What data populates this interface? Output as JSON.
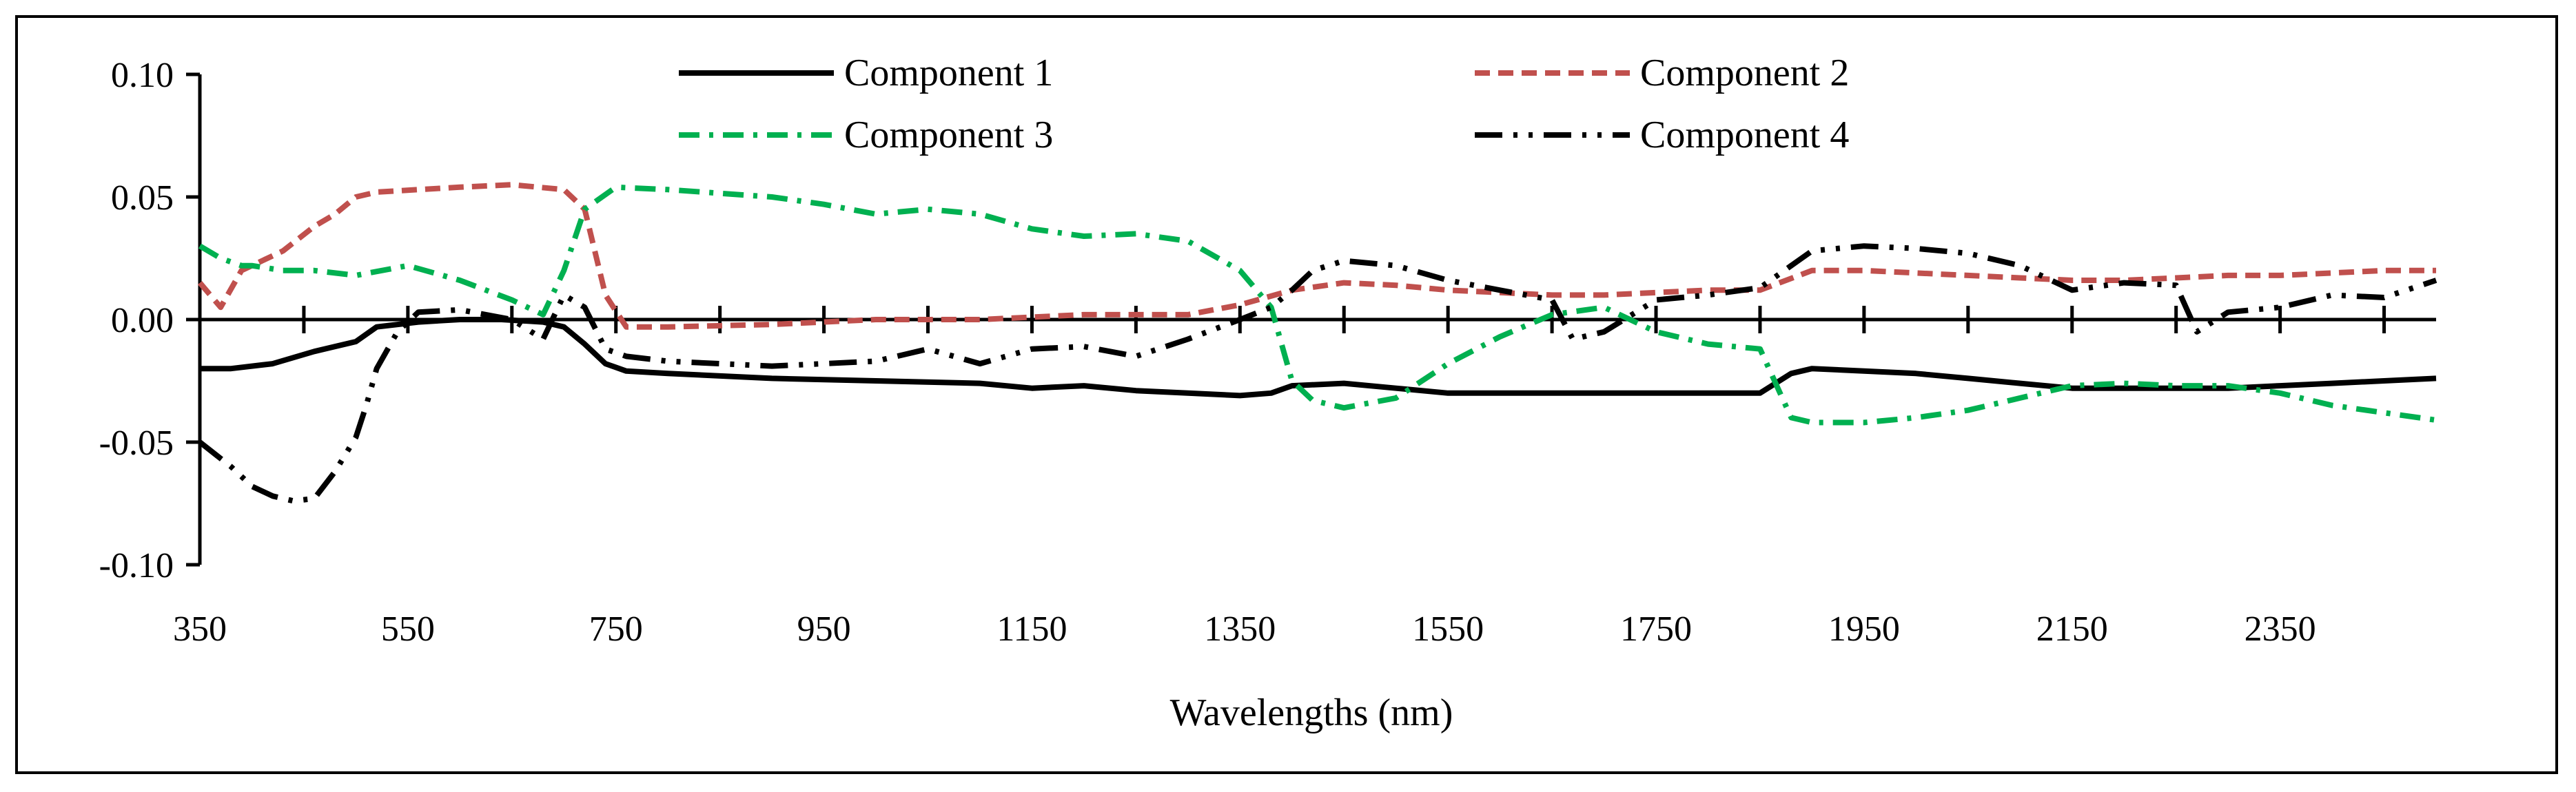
{
  "chart_data": {
    "type": "line",
    "title": "",
    "xlabel": "Wavelengths (nm)",
    "ylabel": "",
    "xlim": [
      350,
      2500
    ],
    "ylim": [
      -0.1,
      0.1
    ],
    "x_ticks": [
      350,
      450,
      550,
      650,
      750,
      850,
      950,
      1050,
      1150,
      1250,
      1350,
      1450,
      1550,
      1650,
      1750,
      1850,
      1950,
      2050,
      2150,
      2250,
      2350,
      2450
    ],
    "x_tick_labels": [
      "350",
      "550",
      "750",
      "950",
      "1150",
      "1350",
      "1550",
      "1750",
      "1950",
      "2150",
      "2350"
    ],
    "y_tick_labels": [
      "0.10",
      "0.05",
      "0.00",
      "-0.05",
      "-0.10"
    ],
    "y_ticks": [
      0.1,
      0.05,
      0.0,
      -0.05,
      -0.1
    ],
    "legend_position": "top",
    "series": [
      {
        "name": "Component 1",
        "color": "#000000",
        "style": "solid",
        "x": [
          350,
          380,
          420,
          460,
          500,
          520,
          560,
          600,
          640,
          680,
          700,
          720,
          740,
          760,
          800,
          900,
          1000,
          1100,
          1150,
          1200,
          1250,
          1300,
          1350,
          1380,
          1400,
          1450,
          1500,
          1550,
          1650,
          1750,
          1850,
          1880,
          1900,
          1950,
          2000,
          2050,
          2100,
          2150,
          2200,
          2250,
          2300,
          2350,
          2400,
          2450,
          2500
        ],
        "y": [
          -0.02,
          -0.02,
          -0.018,
          -0.013,
          -0.009,
          -0.003,
          -0.001,
          0.0,
          0.0,
          -0.001,
          -0.003,
          -0.01,
          -0.018,
          -0.021,
          -0.022,
          -0.024,
          -0.025,
          -0.026,
          -0.028,
          -0.027,
          -0.029,
          -0.03,
          -0.031,
          -0.03,
          -0.027,
          -0.026,
          -0.028,
          -0.03,
          -0.03,
          -0.03,
          -0.03,
          -0.022,
          -0.02,
          -0.021,
          -0.022,
          -0.024,
          -0.026,
          -0.028,
          -0.028,
          -0.028,
          -0.028,
          -0.027,
          -0.026,
          -0.025,
          -0.024
        ]
      },
      {
        "name": "Component 2",
        "color": "#C0504D",
        "style": "dashed",
        "x": [
          350,
          370,
          390,
          400,
          430,
          460,
          480,
          500,
          520,
          560,
          600,
          650,
          700,
          720,
          740,
          760,
          800,
          900,
          1000,
          1100,
          1200,
          1300,
          1350,
          1400,
          1450,
          1500,
          1550,
          1600,
          1650,
          1700,
          1750,
          1800,
          1850,
          1900,
          1950,
          2000,
          2050,
          2100,
          2150,
          2200,
          2250,
          2300,
          2350,
          2400,
          2450,
          2500
        ],
        "y": [
          0.015,
          0.005,
          0.02,
          0.022,
          0.028,
          0.038,
          0.043,
          0.05,
          0.052,
          0.053,
          0.054,
          0.055,
          0.053,
          0.045,
          0.01,
          -0.003,
          -0.003,
          -0.002,
          0.0,
          0.0,
          0.002,
          0.002,
          0.006,
          0.012,
          0.015,
          0.014,
          0.012,
          0.011,
          0.01,
          0.01,
          0.011,
          0.012,
          0.012,
          0.02,
          0.02,
          0.019,
          0.018,
          0.017,
          0.016,
          0.016,
          0.017,
          0.018,
          0.018,
          0.019,
          0.02,
          0.02
        ]
      },
      {
        "name": "Component 3",
        "color": "#00B050",
        "style": "dashdot",
        "x": [
          350,
          370,
          390,
          400,
          430,
          460,
          500,
          550,
          600,
          650,
          680,
          700,
          720,
          750,
          800,
          900,
          950,
          1000,
          1050,
          1100,
          1150,
          1200,
          1250,
          1300,
          1350,
          1380,
          1400,
          1420,
          1450,
          1500,
          1550,
          1600,
          1650,
          1700,
          1750,
          1800,
          1850,
          1880,
          1900,
          1950,
          2000,
          2050,
          2100,
          2150,
          2200,
          2250,
          2300,
          2350,
          2400,
          2450,
          2500
        ],
        "y": [
          0.03,
          0.025,
          0.022,
          0.022,
          0.02,
          0.02,
          0.018,
          0.022,
          0.016,
          0.008,
          0.002,
          0.02,
          0.045,
          0.054,
          0.053,
          0.05,
          0.047,
          0.043,
          0.045,
          0.043,
          0.037,
          0.034,
          0.035,
          0.032,
          0.02,
          0.005,
          -0.025,
          -0.033,
          -0.036,
          -0.032,
          -0.018,
          -0.007,
          0.002,
          0.005,
          -0.005,
          -0.01,
          -0.012,
          -0.04,
          -0.042,
          -0.042,
          -0.04,
          -0.037,
          -0.032,
          -0.027,
          -0.026,
          -0.027,
          -0.027,
          -0.03,
          -0.035,
          -0.038,
          -0.041
        ]
      },
      {
        "name": "Component 4",
        "color": "#000000",
        "style": "longdashdot",
        "x": [
          350,
          365,
          380,
          400,
          420,
          440,
          460,
          480,
          500,
          510,
          520,
          540,
          560,
          600,
          650,
          680,
          700,
          720,
          740,
          760,
          800,
          900,
          1000,
          1050,
          1100,
          1150,
          1200,
          1250,
          1300,
          1350,
          1380,
          1400,
          1420,
          1450,
          1500,
          1550,
          1600,
          1650,
          1670,
          1700,
          1750,
          1800,
          1850,
          1880,
          1900,
          1950,
          2000,
          2050,
          2100,
          2150,
          2200,
          2250,
          2270,
          2300,
          2350,
          2400,
          2450,
          2500
        ],
        "y": [
          -0.05,
          -0.055,
          -0.06,
          -0.068,
          -0.072,
          -0.074,
          -0.073,
          -0.062,
          -0.048,
          -0.035,
          -0.02,
          -0.005,
          0.003,
          0.004,
          0.0,
          -0.008,
          0.01,
          0.005,
          -0.012,
          -0.015,
          -0.017,
          -0.019,
          -0.017,
          -0.012,
          -0.018,
          -0.012,
          -0.011,
          -0.015,
          -0.008,
          0.0,
          0.005,
          0.012,
          0.02,
          0.024,
          0.022,
          0.016,
          0.012,
          0.008,
          -0.008,
          -0.005,
          0.008,
          0.01,
          0.013,
          0.022,
          0.028,
          0.03,
          0.029,
          0.027,
          0.022,
          0.012,
          0.015,
          0.014,
          -0.005,
          0.003,
          0.005,
          0.01,
          0.009,
          0.016
        ]
      }
    ]
  }
}
